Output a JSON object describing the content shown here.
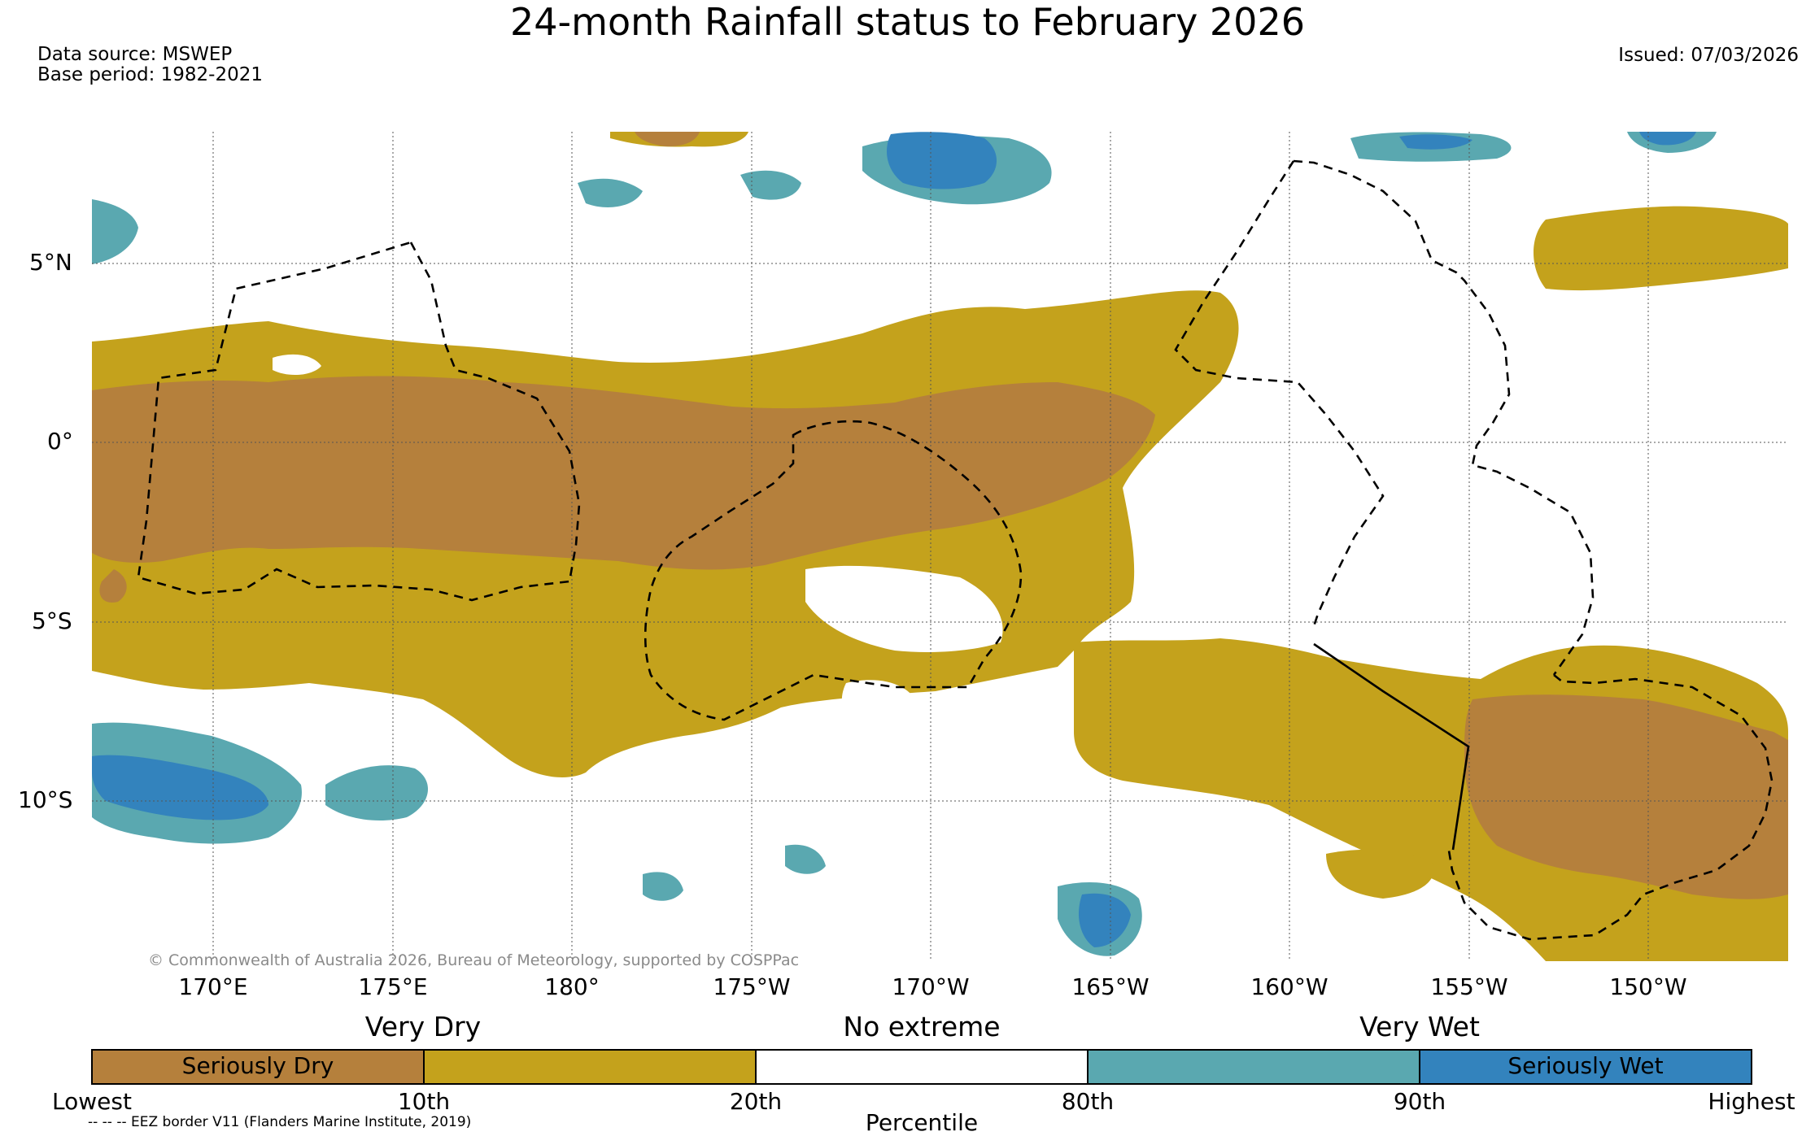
{
  "title": "24-month Rainfall status to February 2026",
  "data_source": "Data source: MSWEP",
  "base_period": "Base period: 1982-2021",
  "issued": "Issued: 07/03/2026",
  "copyright": "© Commonwealth of Australia 2026, Bureau of Meteorology, supported by COSPPac",
  "eez_note": "-- -- -- EEZ border V11 (Flanders Marine Institute, 2019)",
  "lat_labels": [
    "5°N",
    "0°",
    "5°S",
    "10°S"
  ],
  "lon_labels": [
    "170°E",
    "175°E",
    "180°",
    "175°W",
    "170°W",
    "165°W",
    "160°W",
    "155°W",
    "150°W"
  ],
  "legend": {
    "group_very_dry": "Very Dry",
    "group_no_extreme": "No extreme",
    "group_very_wet": "Very Wet",
    "seriously_dry": "Seriously Dry",
    "seriously_wet": "Seriously Wet",
    "pct_lowest": "Lowest",
    "pct_10": "10th",
    "pct_20": "20th",
    "pct_80": "80th",
    "pct_90": "90th",
    "pct_highest": "Highest",
    "axis_label": "Percentile"
  },
  "colors": {
    "seriously_dry": "#b5803c",
    "very_dry": "#c4a21c",
    "no_extreme": "#ffffff",
    "very_wet": "#5aa8b0",
    "seriously_wet": "#3383bd"
  }
}
